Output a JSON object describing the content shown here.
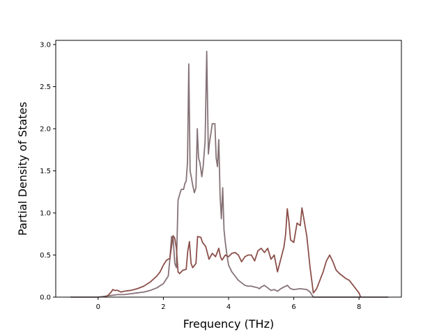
{
  "chart_data": {
    "type": "line",
    "title": "",
    "xlabel": "Frequency (THz)",
    "ylabel": "Partial Density of States",
    "xlim": [
      -1.3,
      9.3
    ],
    "ylim": [
      0,
      3.05
    ],
    "xticks": [
      0,
      2,
      4,
      6,
      8
    ],
    "yticks": [
      0.0,
      0.5,
      1.0,
      1.5,
      2.0,
      2.5,
      3.0
    ],
    "xtick_labels": [
      "0",
      "2",
      "4",
      "6",
      "8"
    ],
    "ytick_labels": [
      "0.0",
      "0.5",
      "1.0",
      "1.5",
      "2.0",
      "2.5",
      "3.0"
    ],
    "grid": false,
    "legend": "none",
    "series": [
      {
        "color": "#857276",
        "points": [
          [
            -0.85,
            0.0
          ],
          [
            0.0,
            0.0
          ],
          [
            0.2,
            0.01
          ],
          [
            0.4,
            0.02
          ],
          [
            0.6,
            0.03
          ],
          [
            0.8,
            0.03
          ],
          [
            1.0,
            0.04
          ],
          [
            1.2,
            0.05
          ],
          [
            1.4,
            0.06
          ],
          [
            1.6,
            0.08
          ],
          [
            1.8,
            0.11
          ],
          [
            2.0,
            0.16
          ],
          [
            2.15,
            0.25
          ],
          [
            2.2,
            0.45
          ],
          [
            2.25,
            0.72
          ],
          [
            2.3,
            0.7
          ],
          [
            2.35,
            0.4
          ],
          [
            2.4,
            0.35
          ],
          [
            2.45,
            1.15
          ],
          [
            2.5,
            1.22
          ],
          [
            2.55,
            1.28
          ],
          [
            2.62,
            1.28
          ],
          [
            2.66,
            1.35
          ],
          [
            2.7,
            1.38
          ],
          [
            2.74,
            1.6
          ],
          [
            2.78,
            2.77
          ],
          [
            2.82,
            1.5
          ],
          [
            2.86,
            1.42
          ],
          [
            2.9,
            1.33
          ],
          [
            2.95,
            1.24
          ],
          [
            3.0,
            1.3
          ],
          [
            3.04,
            2.0
          ],
          [
            3.08,
            1.65
          ],
          [
            3.12,
            1.6
          ],
          [
            3.18,
            1.43
          ],
          [
            3.22,
            1.55
          ],
          [
            3.28,
            1.85
          ],
          [
            3.33,
            2.92
          ],
          [
            3.38,
            1.7
          ],
          [
            3.42,
            1.85
          ],
          [
            3.46,
            1.95
          ],
          [
            3.5,
            2.06
          ],
          [
            3.58,
            2.06
          ],
          [
            3.62,
            1.65
          ],
          [
            3.66,
            1.55
          ],
          [
            3.7,
            1.87
          ],
          [
            3.74,
            1.2
          ],
          [
            3.78,
            0.93
          ],
          [
            3.82,
            1.3
          ],
          [
            3.86,
            0.8
          ],
          [
            3.9,
            0.65
          ],
          [
            3.95,
            0.5
          ],
          [
            4.0,
            0.38
          ],
          [
            4.1,
            0.3
          ],
          [
            4.2,
            0.25
          ],
          [
            4.3,
            0.2
          ],
          [
            4.4,
            0.17
          ],
          [
            4.5,
            0.14
          ],
          [
            4.6,
            0.13
          ],
          [
            4.7,
            0.13
          ],
          [
            4.8,
            0.12
          ],
          [
            4.9,
            0.11
          ],
          [
            4.95,
            0.1
          ],
          [
            5.0,
            0.12
          ],
          [
            5.1,
            0.14
          ],
          [
            5.2,
            0.11
          ],
          [
            5.3,
            0.08
          ],
          [
            5.4,
            0.09
          ],
          [
            5.5,
            0.07
          ],
          [
            5.6,
            0.1
          ],
          [
            5.7,
            0.12
          ],
          [
            5.8,
            0.14
          ],
          [
            5.9,
            0.1
          ],
          [
            6.0,
            0.09
          ],
          [
            6.2,
            0.1
          ],
          [
            6.4,
            0.09
          ],
          [
            6.5,
            0.06
          ],
          [
            6.6,
            0.0
          ],
          [
            8.9,
            0.0
          ]
        ]
      },
      {
        "color": "#8b4f4a",
        "points": [
          [
            0.2,
            0.0
          ],
          [
            0.3,
            0.02
          ],
          [
            0.4,
            0.06
          ],
          [
            0.45,
            0.09
          ],
          [
            0.5,
            0.08
          ],
          [
            0.6,
            0.08
          ],
          [
            0.7,
            0.06
          ],
          [
            0.8,
            0.07
          ],
          [
            1.0,
            0.08
          ],
          [
            1.2,
            0.1
          ],
          [
            1.4,
            0.13
          ],
          [
            1.6,
            0.18
          ],
          [
            1.8,
            0.25
          ],
          [
            1.9,
            0.3
          ],
          [
            2.0,
            0.38
          ],
          [
            2.1,
            0.44
          ],
          [
            2.2,
            0.46
          ],
          [
            2.25,
            0.6
          ],
          [
            2.3,
            0.73
          ],
          [
            2.35,
            0.7
          ],
          [
            2.4,
            0.58
          ],
          [
            2.45,
            0.3
          ],
          [
            2.5,
            0.28
          ],
          [
            2.6,
            0.32
          ],
          [
            2.7,
            0.33
          ],
          [
            2.75,
            0.55
          ],
          [
            2.8,
            0.66
          ],
          [
            2.85,
            0.4
          ],
          [
            2.9,
            0.35
          ],
          [
            3.0,
            0.4
          ],
          [
            3.05,
            0.72
          ],
          [
            3.15,
            0.71
          ],
          [
            3.2,
            0.65
          ],
          [
            3.3,
            0.6
          ],
          [
            3.4,
            0.45
          ],
          [
            3.5,
            0.52
          ],
          [
            3.6,
            0.48
          ],
          [
            3.7,
            0.58
          ],
          [
            3.75,
            0.48
          ],
          [
            3.8,
            0.44
          ],
          [
            3.9,
            0.5
          ],
          [
            4.0,
            0.48
          ],
          [
            4.1,
            0.52
          ],
          [
            4.2,
            0.53
          ],
          [
            4.3,
            0.5
          ],
          [
            4.4,
            0.42
          ],
          [
            4.5,
            0.48
          ],
          [
            4.6,
            0.5
          ],
          [
            4.7,
            0.5
          ],
          [
            4.8,
            0.43
          ],
          [
            4.9,
            0.55
          ],
          [
            5.0,
            0.58
          ],
          [
            5.1,
            0.53
          ],
          [
            5.2,
            0.58
          ],
          [
            5.3,
            0.45
          ],
          [
            5.4,
            0.5
          ],
          [
            5.5,
            0.3
          ],
          [
            5.6,
            0.45
          ],
          [
            5.7,
            0.6
          ],
          [
            5.75,
            0.75
          ],
          [
            5.8,
            1.05
          ],
          [
            5.85,
            0.9
          ],
          [
            5.9,
            0.68
          ],
          [
            6.0,
            0.65
          ],
          [
            6.1,
            0.88
          ],
          [
            6.2,
            0.85
          ],
          [
            6.25,
            1.06
          ],
          [
            6.3,
            0.95
          ],
          [
            6.4,
            0.72
          ],
          [
            6.5,
            0.35
          ],
          [
            6.6,
            0.05
          ],
          [
            6.7,
            0.1
          ],
          [
            6.8,
            0.2
          ],
          [
            6.9,
            0.3
          ],
          [
            7.0,
            0.43
          ],
          [
            7.1,
            0.5
          ],
          [
            7.2,
            0.42
          ],
          [
            7.3,
            0.32
          ],
          [
            7.4,
            0.28
          ],
          [
            7.5,
            0.25
          ],
          [
            7.6,
            0.22
          ],
          [
            7.7,
            0.2
          ],
          [
            7.8,
            0.15
          ],
          [
            7.9,
            0.1
          ],
          [
            8.0,
            0.05
          ],
          [
            8.05,
            0.0
          ]
        ]
      }
    ]
  }
}
